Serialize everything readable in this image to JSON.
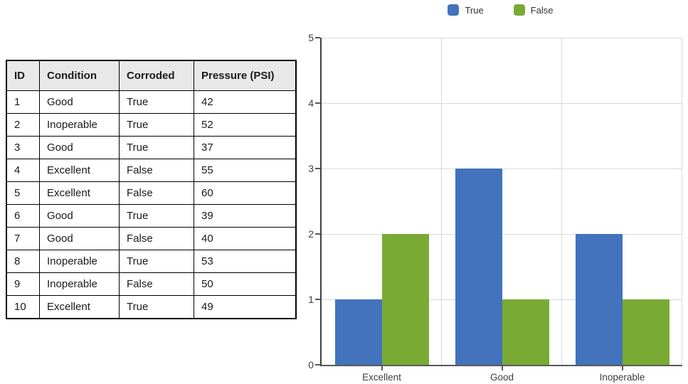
{
  "table": {
    "columns": [
      "ID",
      "Condition",
      "Corroded",
      "Pressure (PSI)"
    ],
    "rows": [
      [
        "1",
        "Good",
        "True",
        "42"
      ],
      [
        "2",
        "Inoperable",
        "True",
        "52"
      ],
      [
        "3",
        "Good",
        "True",
        "37"
      ],
      [
        "4",
        "Excellent",
        "False",
        "55"
      ],
      [
        "5",
        "Excellent",
        "False",
        "60"
      ],
      [
        "6",
        "Good",
        "True",
        "39"
      ],
      [
        "7",
        "Good",
        "False",
        "40"
      ],
      [
        "8",
        "Inoperable",
        "True",
        "53"
      ],
      [
        "9",
        "Inoperable",
        "False",
        "50"
      ],
      [
        "10",
        "Excellent",
        "True",
        "49"
      ]
    ]
  },
  "chart_data": {
    "type": "bar",
    "categories": [
      "Excellent",
      "Good",
      "Inoperable"
    ],
    "series": [
      {
        "name": "True",
        "color": "#4273bc",
        "values": [
          1,
          3,
          2
        ]
      },
      {
        "name": "False",
        "color": "#79ab34",
        "values": [
          2,
          1,
          1
        ]
      }
    ],
    "ylim": [
      0,
      5
    ],
    "yticks": [
      0,
      1,
      2,
      3,
      4,
      5
    ],
    "grid": true,
    "legend_position": "top"
  }
}
